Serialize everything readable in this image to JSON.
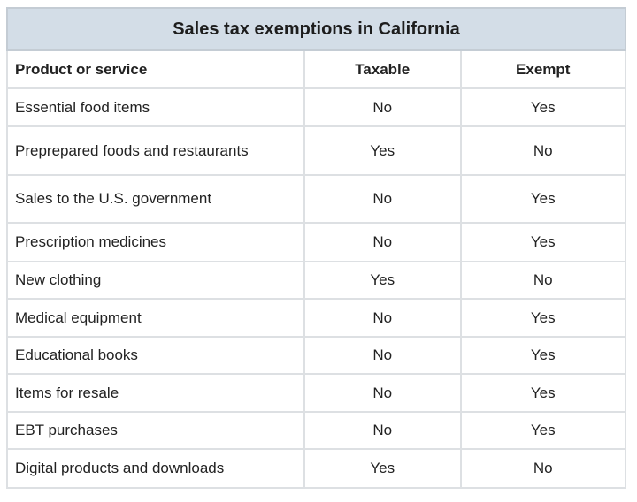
{
  "table": {
    "title": "Sales tax exemptions in California",
    "headers": [
      "Product or service",
      "Taxable",
      "Exempt"
    ],
    "rows": [
      [
        "Essential food items",
        "No",
        "Yes"
      ],
      [
        "Preprepared foods and restaurants",
        "Yes",
        "No"
      ],
      [
        "Sales to the U.S. government",
        "No",
        "Yes"
      ],
      [
        "Prescription medicines",
        "No",
        "Yes"
      ],
      [
        "New clothing",
        "Yes",
        "No"
      ],
      [
        "Medical equipment",
        "No",
        "Yes"
      ],
      [
        "Educational books",
        "No",
        "Yes"
      ],
      [
        "Items for resale",
        "No",
        "Yes"
      ],
      [
        "EBT purchases",
        "No",
        "Yes"
      ],
      [
        "Digital products and downloads",
        "Yes",
        "No"
      ]
    ]
  },
  "colors": {
    "title_background": "#d3dde7",
    "border": "#dde0e3"
  }
}
